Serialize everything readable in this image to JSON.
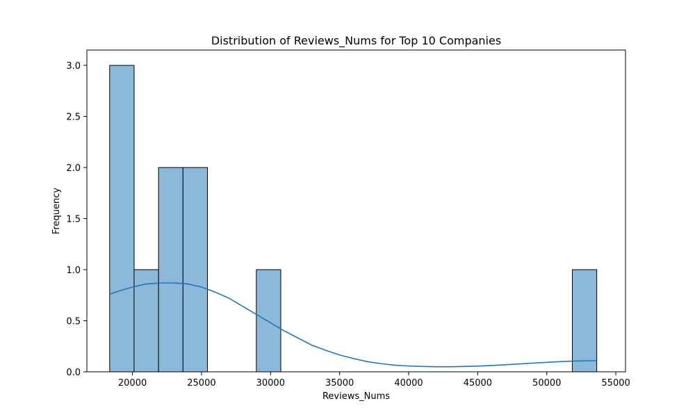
{
  "chart_data": {
    "type": "bar",
    "title": "Distribution of Reviews_Nums for Top 10 Companies",
    "xlabel": "Reviews_Nums",
    "ylabel": "Frequency",
    "xlim": [
      16700,
      55700
    ],
    "ylim": [
      0,
      3.15
    ],
    "x_ticks": [
      20000,
      25000,
      30000,
      35000,
      40000,
      45000,
      50000,
      55000
    ],
    "y_ticks": [
      0.0,
      0.5,
      1.0,
      1.5,
      2.0,
      2.5,
      3.0
    ],
    "y_tick_labels": [
      "0.0",
      "0.5",
      "1.0",
      "1.5",
      "2.0",
      "2.5",
      "3.0"
    ],
    "bins": [
      {
        "start": 18350,
        "end": 20120,
        "count": 3
      },
      {
        "start": 20120,
        "end": 21890,
        "count": 1
      },
      {
        "start": 21890,
        "end": 23660,
        "count": 2
      },
      {
        "start": 23660,
        "end": 25430,
        "count": 2
      },
      {
        "start": 28970,
        "end": 30740,
        "count": 1
      },
      {
        "start": 51850,
        "end": 53620,
        "count": 1
      }
    ],
    "kde": {
      "x": [
        18350,
        19000,
        20000,
        21000,
        22000,
        23000,
        24000,
        25000,
        26000,
        27000,
        28000,
        29000,
        30000,
        31000,
        32000,
        33000,
        34000,
        35000,
        36000,
        37000,
        38000,
        39000,
        40000,
        41000,
        42000,
        43000,
        44000,
        45000,
        46000,
        47000,
        48000,
        49000,
        50000,
        51000,
        52000,
        53000,
        53620
      ],
      "y": [
        0.76,
        0.79,
        0.83,
        0.86,
        0.87,
        0.87,
        0.86,
        0.83,
        0.78,
        0.72,
        0.64,
        0.56,
        0.48,
        0.4,
        0.33,
        0.26,
        0.21,
        0.165,
        0.13,
        0.1,
        0.08,
        0.065,
        0.057,
        0.052,
        0.05,
        0.05,
        0.052,
        0.056,
        0.062,
        0.069,
        0.077,
        0.085,
        0.093,
        0.1,
        0.105,
        0.108,
        0.11
      ]
    },
    "grid": false,
    "colors": {
      "bar_fill": "#8cb8d9",
      "bar_edge": "#000000",
      "kde_line": "#1f77b4"
    }
  }
}
